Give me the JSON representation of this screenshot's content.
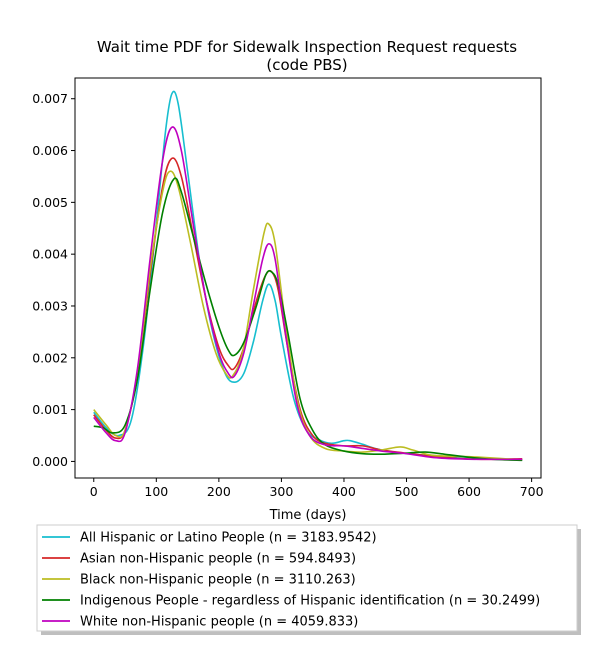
{
  "chart_data": {
    "type": "line",
    "title_line1": "Wait time PDF for Sidewalk Inspection Request  requests",
    "title_line2": "(code PBS)",
    "xlabel": "Time (days)",
    "ylabel": "",
    "xlim": [
      -30,
      715
    ],
    "ylim": [
      -0.00032,
      0.0074
    ],
    "xticks": [
      0,
      100,
      200,
      300,
      400,
      500,
      600,
      700
    ],
    "yticks": [
      0.0,
      0.001,
      0.002,
      0.003,
      0.004,
      0.005,
      0.006,
      0.007
    ],
    "ytick_labels": [
      "0.000",
      "0.001",
      "0.002",
      "0.003",
      "0.004",
      "0.005",
      "0.006",
      "0.007"
    ],
    "legend_position": "below",
    "series": [
      {
        "name": "All Hispanic or Latino People (n = 3183.9542)",
        "color": "#17becf",
        "points": [
          [
            0,
            0.00095
          ],
          [
            20,
            0.00065
          ],
          [
            40,
            0.0005
          ],
          [
            60,
            0.0008
          ],
          [
            80,
            0.0023
          ],
          [
            100,
            0.0046
          ],
          [
            115,
            0.0064
          ],
          [
            125,
            0.0071
          ],
          [
            135,
            0.0069
          ],
          [
            150,
            0.0056
          ],
          [
            170,
            0.0038
          ],
          [
            190,
            0.0025
          ],
          [
            210,
            0.0017
          ],
          [
            225,
            0.00153
          ],
          [
            240,
            0.0017
          ],
          [
            255,
            0.0023
          ],
          [
            270,
            0.0031
          ],
          [
            280,
            0.00342
          ],
          [
            290,
            0.0031
          ],
          [
            300,
            0.0024
          ],
          [
            320,
            0.0012
          ],
          [
            340,
            0.0006
          ],
          [
            360,
            0.00042
          ],
          [
            380,
            0.00035
          ],
          [
            400,
            0.0004
          ],
          [
            410,
            0.0004
          ],
          [
            430,
            0.00033
          ],
          [
            450,
            0.00025
          ],
          [
            480,
            0.00018
          ],
          [
            520,
            0.00013
          ],
          [
            560,
            0.0001
          ],
          [
            600,
            8e-05
          ],
          [
            640,
            4e-05
          ],
          [
            685,
            3e-05
          ]
        ]
      },
      {
        "name": "Asian non-Hispanic people (n = 594.8493)",
        "color": "#d62728",
        "points": [
          [
            0,
            0.0009
          ],
          [
            20,
            0.0006
          ],
          [
            35,
            0.00045
          ],
          [
            50,
            0.0006
          ],
          [
            70,
            0.0017
          ],
          [
            90,
            0.0036
          ],
          [
            110,
            0.0053
          ],
          [
            125,
            0.00585
          ],
          [
            140,
            0.0055
          ],
          [
            160,
            0.0043
          ],
          [
            180,
            0.0031
          ],
          [
            200,
            0.0022
          ],
          [
            215,
            0.00185
          ],
          [
            225,
            0.0018
          ],
          [
            240,
            0.0022
          ],
          [
            260,
            0.0031
          ],
          [
            275,
            0.0036
          ],
          [
            285,
            0.00365
          ],
          [
            295,
            0.0033
          ],
          [
            310,
            0.0022
          ],
          [
            330,
            0.001
          ],
          [
            350,
            0.0005
          ],
          [
            370,
            0.00035
          ],
          [
            400,
            0.0003
          ],
          [
            430,
            0.0003
          ],
          [
            460,
            0.00022
          ],
          [
            500,
            0.00016
          ],
          [
            540,
            0.0001
          ],
          [
            580,
            6e-05
          ],
          [
            620,
            4e-05
          ],
          [
            685,
            5e-05
          ]
        ]
      },
      {
        "name": "Black non-Hispanic people (n = 3110.263)",
        "color": "#bcbd22",
        "points": [
          [
            0,
            0.001
          ],
          [
            20,
            0.0007
          ],
          [
            35,
            0.0005
          ],
          [
            50,
            0.0006
          ],
          [
            70,
            0.0017
          ],
          [
            90,
            0.0037
          ],
          [
            110,
            0.0052
          ],
          [
            122,
            0.0056
          ],
          [
            135,
            0.0053
          ],
          [
            155,
            0.0042
          ],
          [
            175,
            0.003
          ],
          [
            195,
            0.0021
          ],
          [
            212,
            0.00168
          ],
          [
            222,
            0.00165
          ],
          [
            238,
            0.0021
          ],
          [
            255,
            0.0033
          ],
          [
            272,
            0.0044
          ],
          [
            280,
            0.00458
          ],
          [
            290,
            0.0042
          ],
          [
            305,
            0.0028
          ],
          [
            325,
            0.0012
          ],
          [
            345,
            0.0005
          ],
          [
            370,
            0.00025
          ],
          [
            400,
            0.0002
          ],
          [
            430,
            0.00018
          ],
          [
            460,
            0.00022
          ],
          [
            490,
            0.00028
          ],
          [
            510,
            0.00022
          ],
          [
            540,
            0.00012
          ],
          [
            580,
            0.0001
          ],
          [
            620,
            8e-05
          ],
          [
            685,
            3e-05
          ]
        ]
      },
      {
        "name": "Indigenous People - regardless of Hispanic identification (n = 30.2499)",
        "color": "#008000",
        "points": [
          [
            0,
            0.00068
          ],
          [
            15,
            0.00065
          ],
          [
            30,
            0.00055
          ],
          [
            50,
            0.0007
          ],
          [
            70,
            0.0016
          ],
          [
            90,
            0.0033
          ],
          [
            110,
            0.0048
          ],
          [
            128,
            0.00545
          ],
          [
            140,
            0.0052
          ],
          [
            160,
            0.0043
          ],
          [
            180,
            0.0034
          ],
          [
            200,
            0.0026
          ],
          [
            215,
            0.00215
          ],
          [
            225,
            0.00205
          ],
          [
            240,
            0.0023
          ],
          [
            260,
            0.003
          ],
          [
            275,
            0.0036
          ],
          [
            285,
            0.00365
          ],
          [
            295,
            0.0034
          ],
          [
            310,
            0.0025
          ],
          [
            330,
            0.0012
          ],
          [
            350,
            0.0006
          ],
          [
            370,
            0.00032
          ],
          [
            400,
            0.0002
          ],
          [
            430,
            0.00015
          ],
          [
            460,
            0.00014
          ],
          [
            500,
            0.00016
          ],
          [
            530,
            0.00018
          ],
          [
            560,
            0.00014
          ],
          [
            600,
            8e-05
          ],
          [
            640,
            4e-05
          ],
          [
            685,
            2e-05
          ]
        ]
      },
      {
        "name": "White non-Hispanic people (n = 4059.833)",
        "color": "#bf00bf",
        "points": [
          [
            0,
            0.00085
          ],
          [
            20,
            0.00055
          ],
          [
            35,
            0.0004
          ],
          [
            50,
            0.00055
          ],
          [
            70,
            0.0018
          ],
          [
            90,
            0.0039
          ],
          [
            110,
            0.0058
          ],
          [
            125,
            0.00645
          ],
          [
            140,
            0.006
          ],
          [
            160,
            0.0045
          ],
          [
            180,
            0.0031
          ],
          [
            200,
            0.0021
          ],
          [
            215,
            0.0017
          ],
          [
            225,
            0.00165
          ],
          [
            240,
            0.0021
          ],
          [
            255,
            0.003
          ],
          [
            270,
            0.0039
          ],
          [
            280,
            0.0042
          ],
          [
            290,
            0.0039
          ],
          [
            305,
            0.0026
          ],
          [
            325,
            0.0011
          ],
          [
            345,
            0.0005
          ],
          [
            370,
            0.00032
          ],
          [
            400,
            0.0003
          ],
          [
            430,
            0.00025
          ],
          [
            460,
            0.0002
          ],
          [
            500,
            0.00015
          ],
          [
            540,
            8e-05
          ],
          [
            580,
            5e-05
          ],
          [
            620,
            4e-05
          ],
          [
            685,
            4e-05
          ]
        ]
      }
    ]
  }
}
